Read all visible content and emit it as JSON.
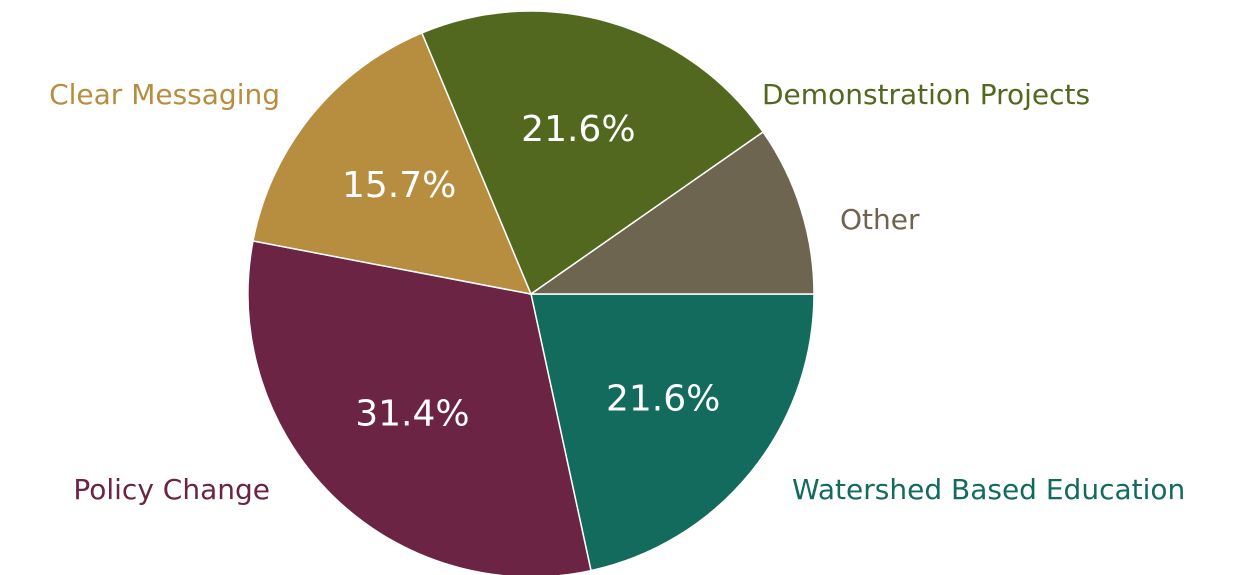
{
  "chart_data": {
    "type": "pie",
    "categories": [
      "Watershed Based Education",
      "Policy Change",
      "Clear Messaging",
      "Demonstration Projects",
      "Other"
    ],
    "values": [
      21.6,
      31.4,
      15.7,
      21.6,
      9.7
    ],
    "value_labels": [
      "21.6%",
      "31.4%",
      "15.7%",
      "21.6%",
      null
    ],
    "colors": [
      "#136b5e",
      "#6b2444",
      "#b78d3f",
      "#52681e",
      "#6e6550"
    ]
  }
}
